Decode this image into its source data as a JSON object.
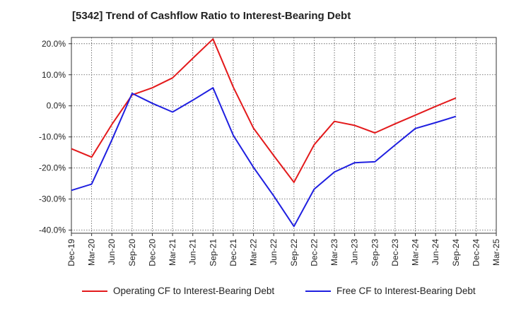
{
  "title": "[5342]  Trend of Cashflow Ratio to Interest-Bearing Debt",
  "colors": {
    "operating": "#e31a1c",
    "free": "#1f1fe0",
    "grid": "#555555",
    "axis": "#333333"
  },
  "chart_data": {
    "type": "line",
    "title": "[5342]  Trend of Cashflow Ratio to Interest-Bearing Debt",
    "xlabel": "",
    "ylabel": "",
    "categories": [
      "Dec-19",
      "Mar-20",
      "Jun-20",
      "Sep-20",
      "Dec-20",
      "Mar-21",
      "Jun-21",
      "Sep-21",
      "Dec-21",
      "Mar-22",
      "Jun-22",
      "Sep-22",
      "Dec-22",
      "Mar-23",
      "Jun-23",
      "Sep-23",
      "Dec-23",
      "Mar-24",
      "Jun-24",
      "Sep-24",
      "Dec-24",
      "Mar-25"
    ],
    "ylim": [
      -41,
      22
    ],
    "yticks": [
      20,
      10,
      0,
      -10,
      -20,
      -30,
      -40
    ],
    "ytick_labels": [
      "20.0%",
      "10.0%",
      "0.0%",
      "-10.0%",
      "-20.0%",
      "-30.0%",
      "-40.0%"
    ],
    "grid": true,
    "legend_position": "bottom",
    "series": [
      {
        "name": "Operating CF to Interest-Bearing Debt",
        "color": "#e31a1c",
        "values": [
          -13.8,
          -16.5,
          -6.0,
          3.5,
          5.8,
          9.0,
          15.3,
          21.5,
          6.0,
          -7.2,
          -16.0,
          -24.6,
          -12.5,
          -5.0,
          -6.3,
          -8.7,
          -5.8,
          -3.0,
          -0.2,
          2.5,
          null,
          null
        ]
      },
      {
        "name": "Free CF to Interest-Bearing Debt",
        "color": "#1f1fe0",
        "values": [
          -27.2,
          -25.2,
          -11.0,
          4.0,
          0.8,
          -2.0,
          1.8,
          5.8,
          -9.5,
          -19.8,
          -29.0,
          -38.8,
          -26.8,
          -21.3,
          -18.3,
          -18.0,
          -12.6,
          -7.3,
          -5.4,
          -3.4,
          null,
          null
        ]
      }
    ]
  }
}
